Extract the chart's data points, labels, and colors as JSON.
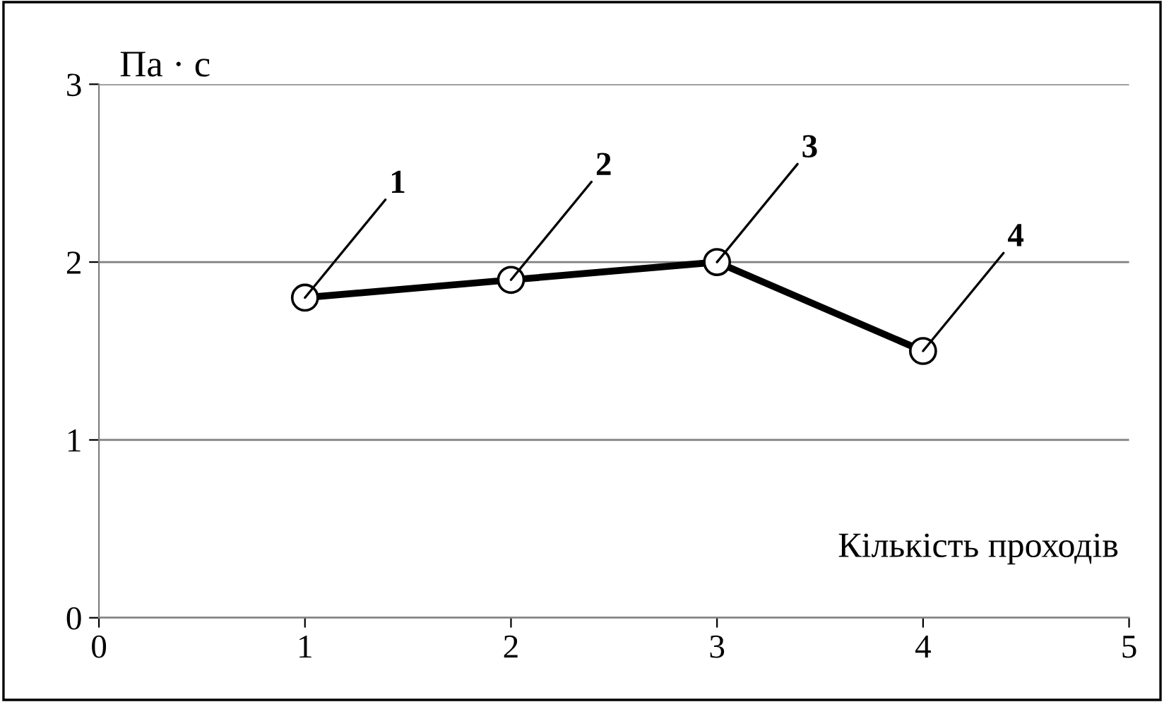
{
  "chart_data": {
    "type": "line",
    "ylabel": "Па · с",
    "xlabel": "Кількість проходів",
    "x": [
      1,
      2,
      3,
      4
    ],
    "series": [
      {
        "color": "#000000",
        "values": [
          1.8,
          1.9,
          2.0,
          1.5
        ]
      }
    ],
    "xlim": [
      0,
      5
    ],
    "xticks": [
      0,
      1,
      2,
      3,
      4,
      5
    ],
    "ylim": [
      0,
      3
    ],
    "yticks": [
      0,
      1,
      2,
      3
    ],
    "grid": "y",
    "marker": "circle",
    "line_style": "solid",
    "annotations": [
      {
        "text": "1",
        "x": 1,
        "y": 1.8
      },
      {
        "text": "2",
        "x": 2,
        "y": 1.9
      },
      {
        "text": "3",
        "x": 3,
        "y": 2.0
      },
      {
        "text": "4",
        "x": 4,
        "y": 1.5
      }
    ]
  }
}
